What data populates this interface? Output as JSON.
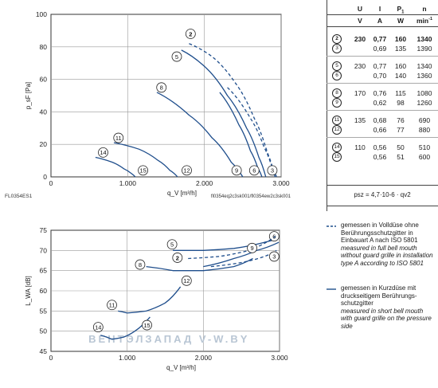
{
  "chart_data": [
    {
      "type": "line",
      "ylabel": "p_sF [Pa]",
      "xlabel": "q_V [m³/h]",
      "xlim": [
        0,
        3000
      ],
      "ylim": [
        0,
        100
      ],
      "xticks": [
        "0",
        "1.000",
        "2.000",
        "3.000"
      ],
      "yticks": [
        "0",
        "20",
        "40",
        "60",
        "80",
        "100"
      ],
      "grid": true,
      "code_left": "FL0354ES1",
      "code_right": "fl0354eq2c3sk001/fl0354ew2c3sk001",
      "series": [
        {
          "name": "2",
          "dashed": true,
          "x": [
            1800,
            2100,
            2400,
            2650,
            2820,
            2920
          ],
          "y": [
            82,
            74,
            58,
            36,
            15,
            0
          ],
          "label_at": [
            1820,
            88
          ]
        },
        {
          "name": "5",
          "dashed": false,
          "x": [
            1700,
            2000,
            2300,
            2550,
            2710,
            2800
          ],
          "y": [
            78,
            68,
            50,
            30,
            12,
            0
          ],
          "label_at": [
            1640,
            74
          ]
        },
        {
          "name": "3",
          "dashed": true,
          "x": [
            2300,
            2600,
            2780,
            2880,
            2940
          ],
          "y": [
            55,
            36,
            18,
            6,
            0
          ],
          "label_at": [
            2885,
            4
          ]
        },
        {
          "name": "6",
          "dashed": false,
          "x": [
            2200,
            2450,
            2600,
            2700,
            2750
          ],
          "y": [
            52,
            32,
            16,
            5,
            0
          ],
          "label_at": [
            2650,
            4
          ]
        },
        {
          "name": "8",
          "dashed": false,
          "x": [
            1380,
            1800,
            2100,
            2350,
            2500
          ],
          "y": [
            52,
            38,
            24,
            9,
            0
          ],
          "label_at": [
            1440,
            55
          ]
        },
        {
          "name": "9",
          "dashed": false,
          "x": [
            2500
          ],
          "y": [
            0
          ],
          "label_at": [
            2420,
            4
          ],
          "marker_only": true
        },
        {
          "name": "11",
          "dashed": false,
          "x": [
            820,
            1150,
            1400,
            1550,
            1650
          ],
          "y": [
            21,
            17,
            10,
            4,
            0
          ],
          "label_at": [
            880,
            24
          ]
        },
        {
          "name": "12",
          "dashed": false,
          "x": [
            1650
          ],
          "y": [
            0
          ],
          "label_at": [
            1770,
            4
          ],
          "marker_only": true
        },
        {
          "name": "14",
          "dashed": false,
          "x": [
            580,
            800,
            950,
            1050,
            1100
          ],
          "y": [
            12,
            9,
            5,
            2,
            0
          ],
          "label_at": [
            680,
            15
          ]
        },
        {
          "name": "15",
          "dashed": false,
          "x": [
            1100
          ],
          "y": [
            0
          ],
          "label_at": [
            1200,
            4
          ],
          "marker_only": true
        }
      ]
    },
    {
      "type": "line",
      "ylabel": "L_WA [dB]",
      "xlabel": "q_V [m³/h]",
      "xlim": [
        0,
        3000
      ],
      "ylim": [
        45,
        75
      ],
      "xticks": [
        "0",
        "1.000",
        "2.000",
        "3.000"
      ],
      "yticks": [
        "45",
        "50",
        "55",
        "60",
        "65",
        "70",
        "75"
      ],
      "grid": true,
      "watermark": "ВЕНТЭЛЗАПАД     V-W.BY",
      "series": [
        {
          "name": "5",
          "dashed": false,
          "x": [
            1600,
            2000,
            2400,
            2800,
            2990
          ],
          "y": [
            70,
            70,
            70.5,
            72,
            73
          ],
          "label_at": [
            1590,
            71.5
          ]
        },
        {
          "name": "6",
          "dashed": false,
          "x": [
            2000,
            2400,
            2700,
            2990
          ],
          "y": [
            66,
            68,
            70,
            72
          ],
          "label_at": [
            2930,
            73.5
          ]
        },
        {
          "name": "2",
          "dashed": true,
          "x": [
            1800,
            2200,
            2600,
            2950
          ],
          "y": [
            68,
            68.5,
            70,
            73.5
          ],
          "label_at": [
            1660,
            68.2
          ]
        },
        {
          "name": "3",
          "dashed": true,
          "x": [
            2100,
            2500,
            2800,
            2960
          ],
          "y": [
            66,
            67,
            68.5,
            70
          ],
          "label_at": [
            2930,
            68.5
          ]
        },
        {
          "name": "8",
          "dashed": false,
          "x": [
            1250,
            1600,
            2000,
            2400,
            2650
          ],
          "y": [
            66,
            65,
            65,
            66,
            68
          ],
          "label_at": [
            1170,
            66.5
          ]
        },
        {
          "name": "9",
          "dashed": false,
          "x": [
            2650
          ],
          "y": [
            68
          ],
          "label_at": [
            2640,
            70.6
          ],
          "marker_only": true
        },
        {
          "name": "12",
          "dashed": false,
          "x": [
            1000,
            1250,
            1500,
            1700
          ],
          "y": [
            54.5,
            55,
            57,
            61
          ],
          "label_at": [
            1780,
            62.5
          ]
        },
        {
          "name": "11",
          "dashed": false,
          "x": [
            880,
            1000
          ],
          "y": [
            55,
            54.5
          ],
          "label_at": [
            800,
            56.5
          ]
        },
        {
          "name": "14",
          "dashed": false,
          "x": [
            650,
            800,
            950,
            1100,
            1300
          ],
          "y": [
            49,
            48,
            48.5,
            50,
            53.5
          ],
          "label_at": [
            620,
            51
          ]
        },
        {
          "name": "15",
          "dashed": false,
          "x": [
            1300
          ],
          "y": [
            53.5
          ],
          "label_at": [
            1260,
            51.5
          ],
          "marker_only": true
        }
      ]
    }
  ],
  "table": {
    "headers": [
      "U",
      "I",
      "P1",
      "n"
    ],
    "units": [
      "V",
      "A",
      "W",
      "min-1"
    ],
    "rows": [
      {
        "id": "2",
        "U": "230",
        "I": "0,77",
        "P": "160",
        "n": "1340",
        "bold": true
      },
      {
        "id": "3",
        "U": "",
        "I": "0,69",
        "P": "135",
        "n": "1390"
      },
      {
        "id": "5",
        "U": "230",
        "I": "0,77",
        "P": "160",
        "n": "1340"
      },
      {
        "id": "6",
        "U": "",
        "I": "0,70",
        "P": "140",
        "n": "1360"
      },
      {
        "id": "8",
        "U": "170",
        "I": "0,76",
        "P": "115",
        "n": "1080"
      },
      {
        "id": "9",
        "U": "",
        "I": "0,62",
        "P": "98",
        "n": "1260"
      },
      {
        "id": "11",
        "U": "135",
        "I": "0,68",
        "P": "76",
        "n": "690"
      },
      {
        "id": "12",
        "U": "",
        "I": "0,66",
        "P": "77",
        "n": "880"
      },
      {
        "id": "14",
        "U": "110",
        "I": "0,56",
        "P": "50",
        "n": "510"
      },
      {
        "id": "15",
        "U": "",
        "I": "0,56",
        "P": "51",
        "n": "600"
      }
    ],
    "formula": "psz = 4,7·10-6 · qv2"
  },
  "legend": {
    "dashed": {
      "de": "gemessen in Volldüse ohne Berührungsschutzgitter in Einbauart A nach ISO 5801",
      "en": "measured in full bell mouth without guard grille in installation type A according to ISO 5801"
    },
    "solid": {
      "de": "gemessen in Kurzdüse mit druckseitigem Berührungs-schutzgitter",
      "en": "measured in short bell mouth with guard grille on the pressure side"
    }
  },
  "colors": {
    "curve": "#1f4e8c",
    "grid": "#999999",
    "axis": "#333333",
    "watermark": "#b9c6d4"
  }
}
